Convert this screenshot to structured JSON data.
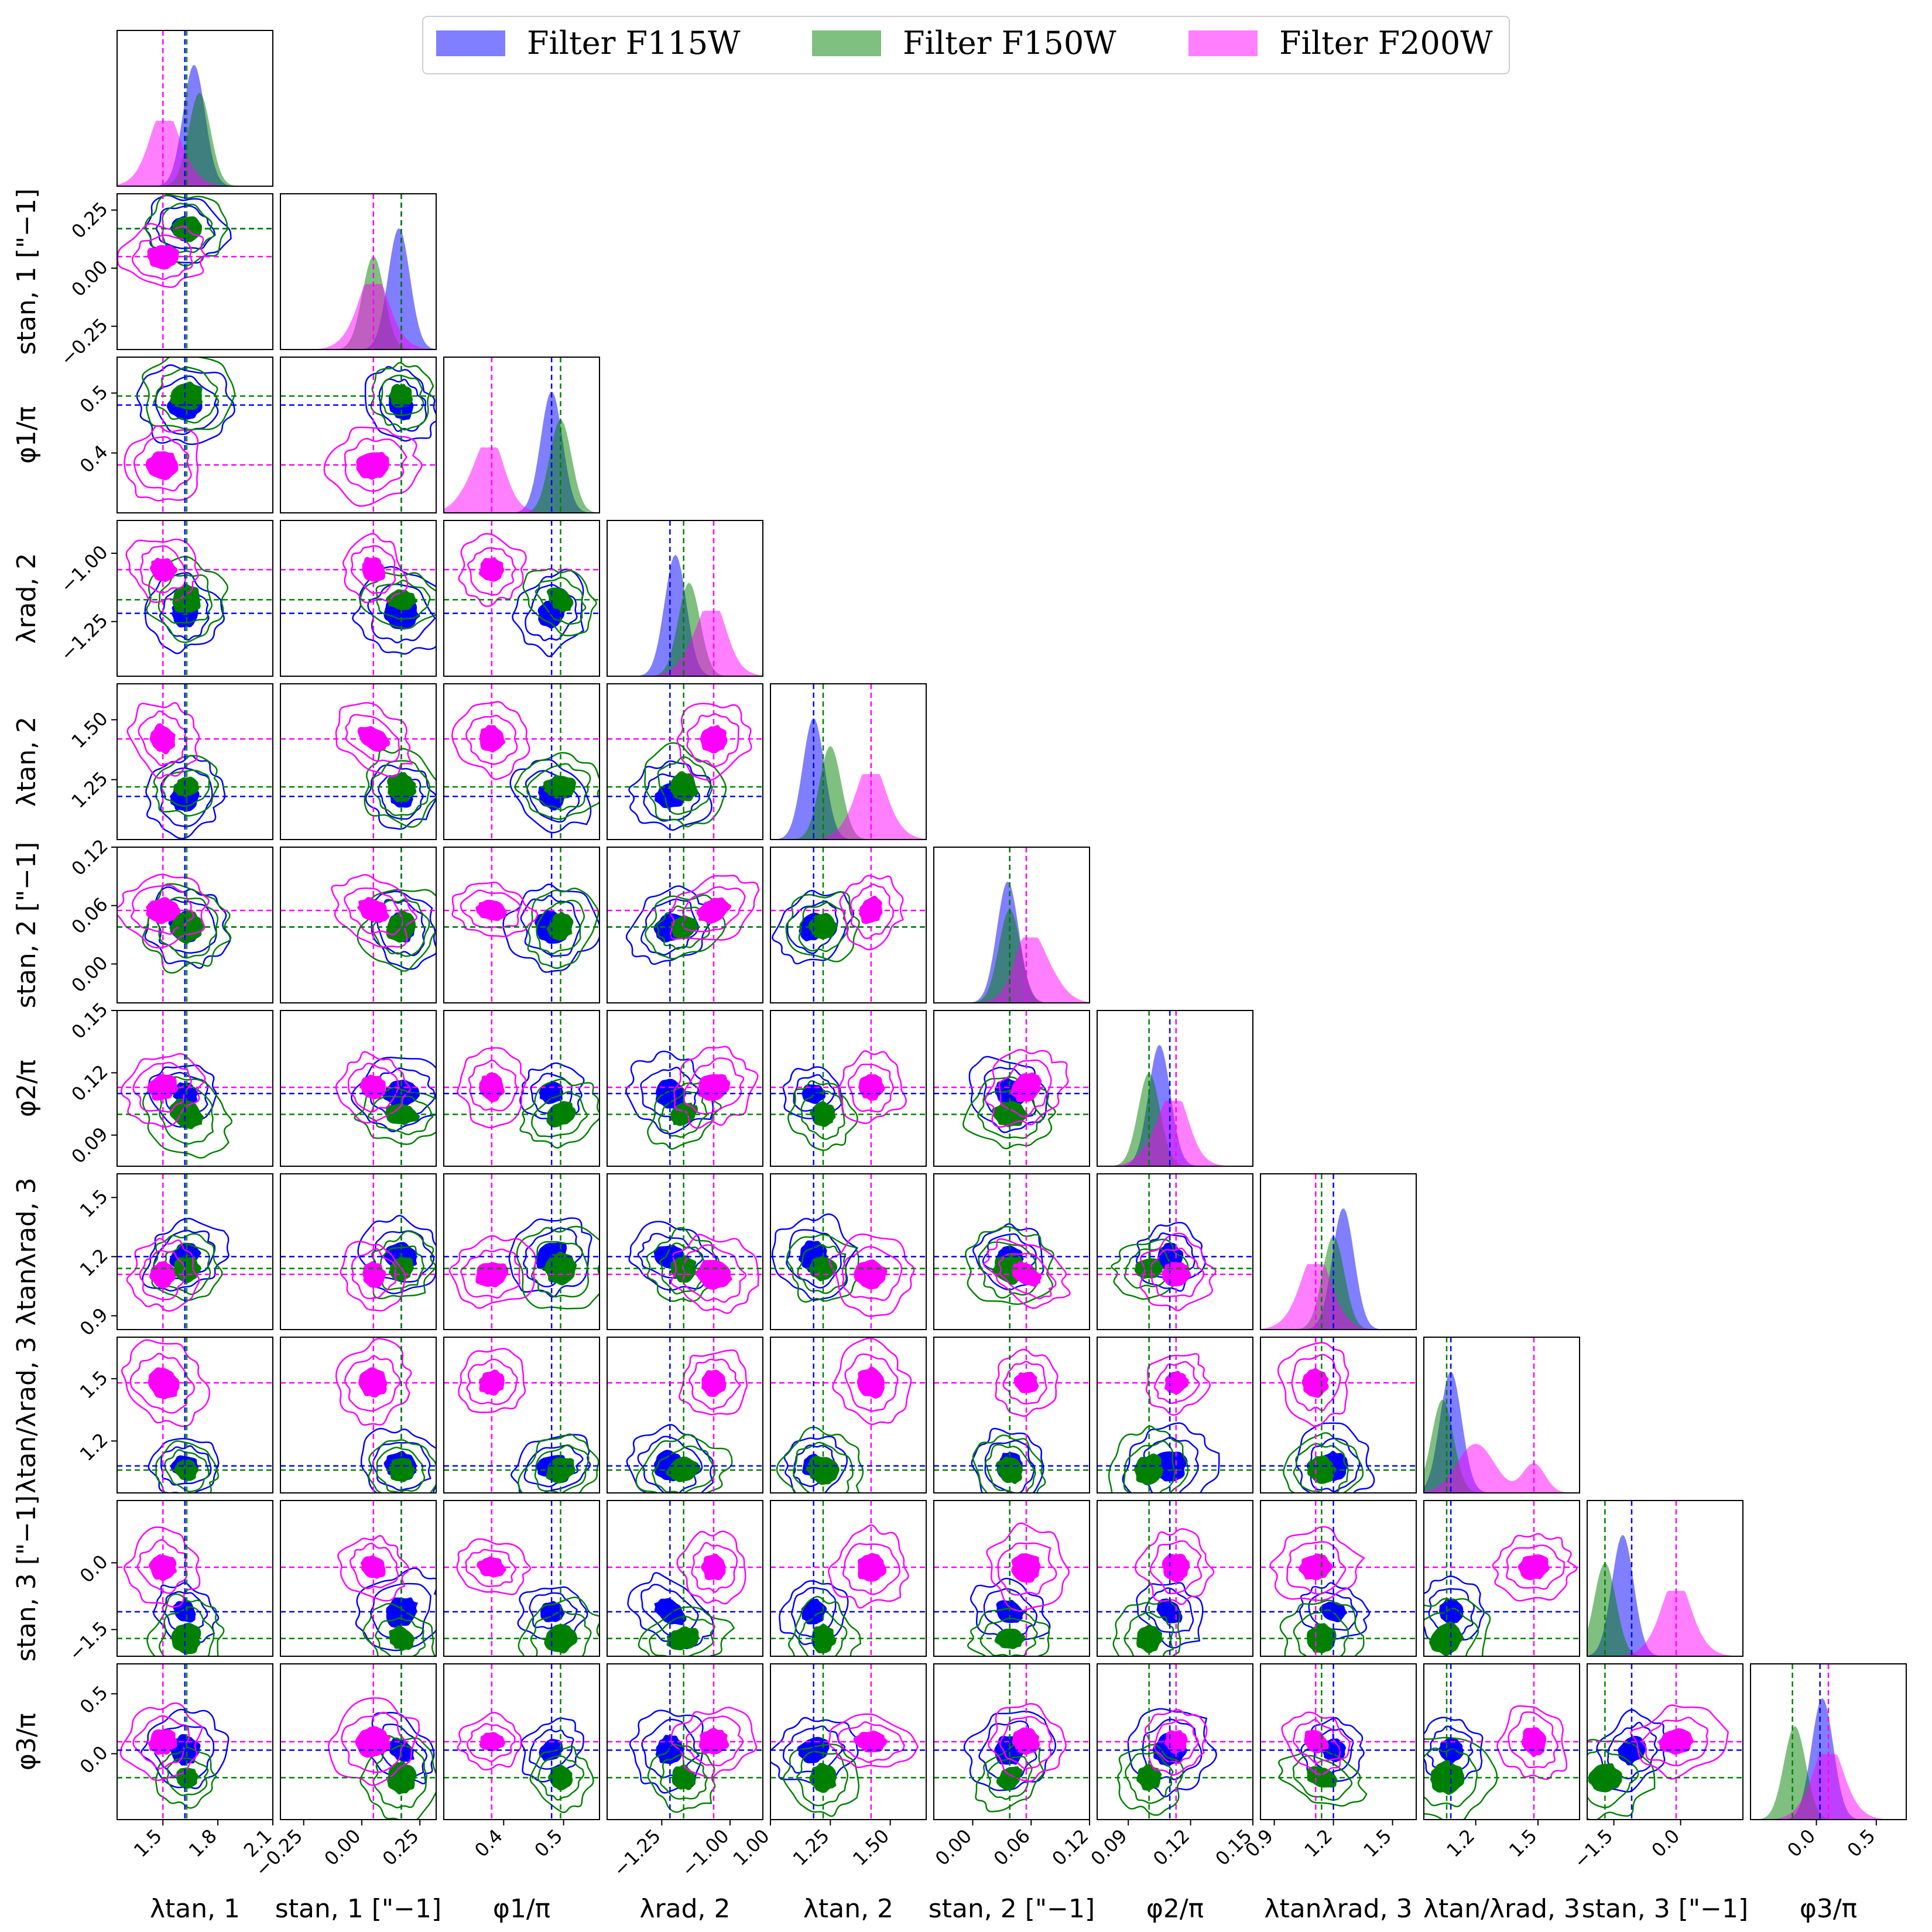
{
  "chart_data": {
    "type": "corner",
    "legend": {
      "placement": "top-center",
      "entries": [
        {
          "name": "Filter F115W",
          "color": "#0000ff"
        },
        {
          "name": "Filter F150W",
          "color": "#008000"
        },
        {
          "name": "Filter F200W",
          "color": "#ff00ff"
        }
      ]
    },
    "parameters": [
      {
        "label": "λtan, 1",
        "range": [
          1.25,
          2.1
        ],
        "ticks": [
          "1.5",
          "1.8",
          "2.1"
        ],
        "tick_values": [
          1.5,
          1.8,
          2.1
        ]
      },
      {
        "label": "stan, 1 [\"−1]",
        "range": [
          -0.35,
          0.32
        ],
        "ticks": [
          "−0.25",
          "0.00",
          "0.25"
        ],
        "tick_values": [
          -0.25,
          0.0,
          0.25
        ]
      },
      {
        "label": "φ1/π",
        "range": [
          0.3,
          0.56
        ],
        "ticks": [
          "0.4",
          "0.5"
        ],
        "tick_values": [
          0.4,
          0.5
        ]
      },
      {
        "label": "λrad, 2",
        "range": [
          -1.45,
          -0.88
        ],
        "ticks": [
          "−1.25",
          "−1.00"
        ],
        "tick_values": [
          -1.25,
          -1.0
        ]
      },
      {
        "label": "λtan, 2",
        "range": [
          1.0,
          1.65
        ],
        "ticks": [
          "1.00",
          "1.25",
          "1.50"
        ],
        "tick_values": [
          1.0,
          1.25,
          1.5
        ]
      },
      {
        "label": "stan, 2 [\"−1]",
        "range": [
          -0.04,
          0.12
        ],
        "ticks": [
          "0.00",
          "0.06",
          "0.12"
        ],
        "tick_values": [
          0.0,
          0.06,
          0.12
        ]
      },
      {
        "label": "φ2/π",
        "range": [
          0.075,
          0.15
        ],
        "ticks": [
          "0.09",
          "0.12",
          "0.15"
        ],
        "tick_values": [
          0.09,
          0.12,
          0.15
        ]
      },
      {
        "label": "λtanλrad, 3",
        "range": [
          0.83,
          1.62
        ],
        "ticks": [
          "0.9",
          "1.2",
          "1.5"
        ],
        "tick_values": [
          0.9,
          1.2,
          1.5
        ]
      },
      {
        "label": "λtan/λrad, 3",
        "range": [
          0.95,
          1.7
        ],
        "ticks": [
          "1.2",
          "1.5"
        ],
        "tick_values": [
          1.2,
          1.5
        ]
      },
      {
        "label": "stan, 3 [\"−1]",
        "range": [
          -2.1,
          1.4
        ],
        "ticks": [
          "−1.5",
          "0.0"
        ],
        "tick_values": [
          -1.5,
          0.0
        ]
      },
      {
        "label": "φ3/π",
        "range": [
          -0.55,
          0.75
        ],
        "ticks": [
          "0.0",
          "0.5"
        ],
        "tick_values": [
          0.0,
          0.5
        ]
      }
    ],
    "left_axis_ticks": [
      null,
      [
        "−0.25",
        "0.00",
        "0.25"
      ],
      [
        "0.4",
        "0.5"
      ],
      [
        "−1.25",
        "−1.00"
      ],
      [
        "1.25",
        "1.50"
      ],
      [
        "0.00",
        "0.06",
        "0.12"
      ],
      [
        "0.09",
        "0.12",
        "0.15"
      ],
      [
        "0.9",
        "1.2",
        "1.5"
      ],
      [
        "1.2",
        "1.5"
      ],
      [
        "−1.5",
        "0.0"
      ],
      [
        "0.0",
        "0.5"
      ]
    ],
    "series": [
      {
        "name": "Filter F115W",
        "best_fit": [
          1.62,
          0.17,
          0.48,
          -1.22,
          1.18,
          0.038,
          0.11,
          1.2,
          1.08,
          -1.1,
          0.03
        ],
        "marginal_mode": [
          1.67,
          0.16,
          0.48,
          -1.2,
          1.18,
          0.036,
          0.105,
          1.25,
          1.08,
          -1.3,
          0.05
        ]
      },
      {
        "name": "Filter F150W",
        "best_fit": [
          1.63,
          0.17,
          0.495,
          -1.17,
          1.22,
          0.038,
          0.1,
          1.14,
          1.06,
          -1.7,
          -0.2
        ],
        "marginal_mode": [
          1.7,
          0.05,
          0.495,
          -1.15,
          1.25,
          0.038,
          0.1,
          1.2,
          1.04,
          -1.7,
          -0.18
        ]
      },
      {
        "name": "Filter F200W",
        "best_fit": [
          1.5,
          0.05,
          0.38,
          -1.06,
          1.42,
          0.055,
          0.113,
          1.11,
          1.48,
          -0.1,
          0.1
        ],
        "marginal_mode": [
          1.52,
          0.05,
          0.37,
          -1.08,
          1.42,
          0.065,
          0.11,
          1.11,
          1.2,
          -0.1,
          0.1
        ]
      }
    ]
  }
}
